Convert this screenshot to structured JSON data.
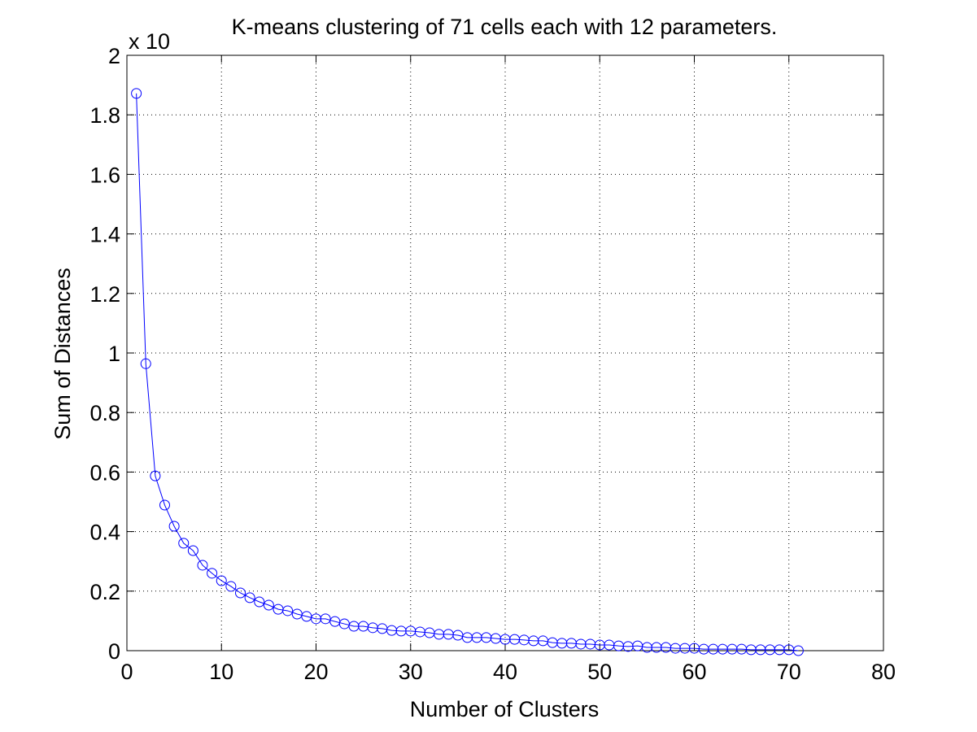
{
  "chart_data": {
    "type": "line",
    "title": "K-means clustering of 71 cells each with 12 parameters.",
    "xlabel": "Number of Clusters",
    "ylabel": "Sum of Distances",
    "y_multiplier_label": "x 10",
    "xlim": [
      0,
      80
    ],
    "ylim": [
      0,
      2
    ],
    "xticks": [
      "0",
      "10",
      "20",
      "30",
      "40",
      "50",
      "60",
      "70",
      "80"
    ],
    "yticks": [
      "0",
      "0.2",
      "0.4",
      "0.6",
      "0.8",
      "1",
      "1.2",
      "1.4",
      "1.6",
      "1.8",
      "2"
    ],
    "grid": true,
    "marker": "circle",
    "color": "#0000ff",
    "series": [
      {
        "name": "Sum of Distances",
        "x": [
          1,
          2,
          3,
          4,
          5,
          6,
          7,
          8,
          9,
          10,
          11,
          12,
          13,
          14,
          15,
          16,
          17,
          18,
          19,
          20,
          21,
          22,
          23,
          24,
          25,
          26,
          27,
          28,
          29,
          30,
          31,
          32,
          33,
          34,
          35,
          36,
          37,
          38,
          39,
          40,
          41,
          42,
          43,
          44,
          45,
          46,
          47,
          48,
          49,
          50,
          51,
          52,
          53,
          54,
          55,
          56,
          57,
          58,
          59,
          60,
          61,
          62,
          63,
          64,
          65,
          66,
          67,
          68,
          69,
          70,
          71
        ],
        "values": [
          1.872,
          0.964,
          0.587,
          0.489,
          0.418,
          0.361,
          0.336,
          0.287,
          0.26,
          0.235,
          0.216,
          0.194,
          0.178,
          0.164,
          0.153,
          0.139,
          0.134,
          0.123,
          0.115,
          0.107,
          0.107,
          0.098,
          0.09,
          0.082,
          0.082,
          0.077,
          0.074,
          0.068,
          0.066,
          0.066,
          0.063,
          0.06,
          0.055,
          0.055,
          0.052,
          0.044,
          0.044,
          0.044,
          0.041,
          0.038,
          0.038,
          0.036,
          0.033,
          0.033,
          0.027,
          0.025,
          0.025,
          0.022,
          0.022,
          0.019,
          0.019,
          0.016,
          0.014,
          0.016,
          0.011,
          0.011,
          0.011,
          0.008,
          0.008,
          0.008,
          0.005,
          0.005,
          0.005,
          0.005,
          0.005,
          0.003,
          0.003,
          0.003,
          0.003,
          0.003,
          0.0
        ]
      }
    ]
  }
}
